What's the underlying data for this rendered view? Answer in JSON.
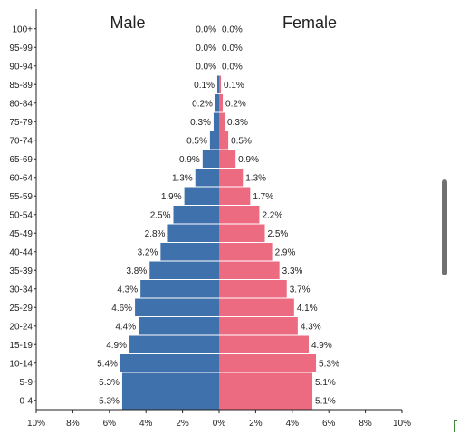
{
  "chart_data": {
    "type": "bar",
    "orientation": "horizontal-population-pyramid",
    "categories": [
      "0-4",
      "5-9",
      "10-14",
      "15-19",
      "20-24",
      "25-29",
      "30-34",
      "35-39",
      "40-44",
      "45-49",
      "50-54",
      "55-59",
      "60-64",
      "65-69",
      "70-74",
      "75-79",
      "80-84",
      "85-89",
      "90-94",
      "95-99",
      "100+"
    ],
    "series": [
      {
        "name": "Male",
        "color": "#3f72ad",
        "values": [
          5.3,
          5.3,
          5.4,
          4.9,
          4.4,
          4.6,
          4.3,
          3.8,
          3.2,
          2.8,
          2.5,
          1.9,
          1.3,
          0.9,
          0.5,
          0.3,
          0.2,
          0.1,
          0.0,
          0.0,
          0.0
        ],
        "labels": [
          "5.3%",
          "5.3%",
          "5.4%",
          "4.9%",
          "4.4%",
          "4.6%",
          "4.3%",
          "3.8%",
          "3.2%",
          "2.8%",
          "2.5%",
          "1.9%",
          "1.3%",
          "0.9%",
          "0.5%",
          "0.3%",
          "0.2%",
          "0.1%",
          "0.0%",
          "0.0%",
          "0.0%"
        ]
      },
      {
        "name": "Female",
        "color": "#ec6b81",
        "values": [
          5.1,
          5.1,
          5.3,
          4.9,
          4.3,
          4.1,
          3.7,
          3.3,
          2.9,
          2.5,
          2.2,
          1.7,
          1.3,
          0.9,
          0.5,
          0.3,
          0.2,
          0.1,
          0.0,
          0.0,
          0.0
        ],
        "labels": [
          "5.1%",
          "5.1%",
          "5.3%",
          "4.9%",
          "4.3%",
          "4.1%",
          "3.7%",
          "3.3%",
          "2.9%",
          "2.5%",
          "2.2%",
          "1.7%",
          "1.3%",
          "0.9%",
          "0.5%",
          "0.3%",
          "0.2%",
          "0.1%",
          "0.0%",
          "0.0%",
          "0.0%"
        ]
      }
    ],
    "xlim": [
      -10,
      10
    ],
    "xticks": [
      "10%",
      "8%",
      "6%",
      "4%",
      "2%",
      "0%",
      "2%",
      "4%",
      "6%",
      "8%",
      "10%"
    ],
    "grid": false,
    "legend": "top-center"
  }
}
